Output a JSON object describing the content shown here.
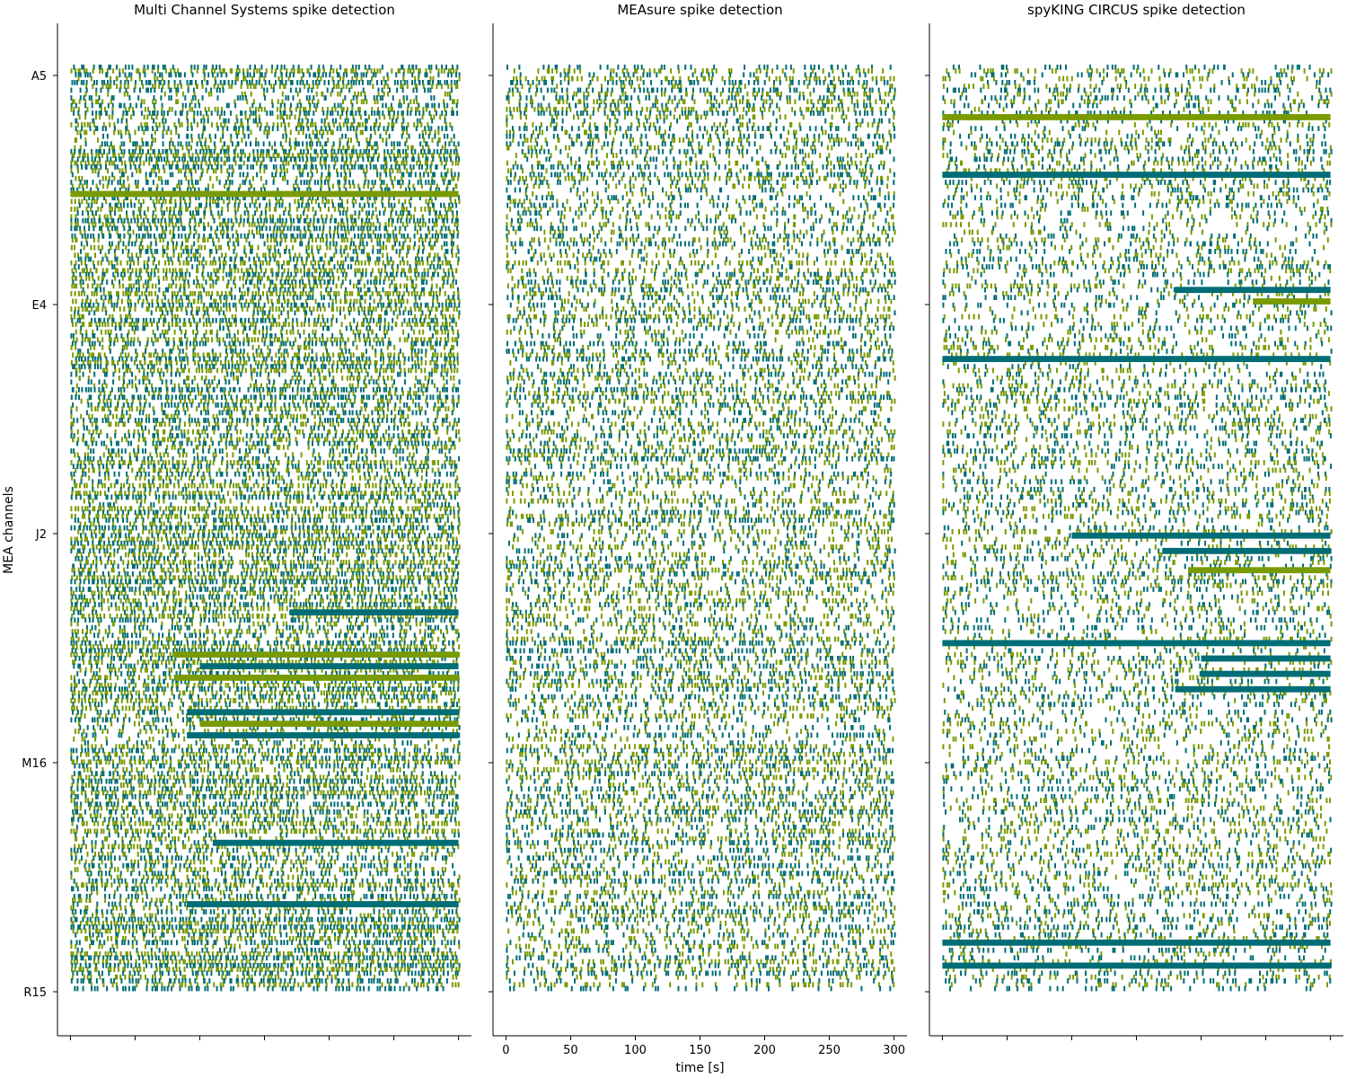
{
  "figure": {
    "ylabel": "MEA channels",
    "xlabel": "time [s]"
  },
  "colors": {
    "series_a": "#006d77",
    "series_b": "#7a9a01",
    "axis": "#000000"
  },
  "chart_data": [
    {
      "type": "scatter",
      "mark": "raster",
      "title": "Multi Channel Systems spike detection",
      "xlim": [
        -10,
        310
      ],
      "xticks": [
        0,
        50,
        100,
        150,
        200,
        250,
        300
      ],
      "xtick_labels_visible": false,
      "ytick_labels": [
        "A5",
        "E4",
        "J2",
        "M16",
        "R15"
      ],
      "ytick_labels_visible": true,
      "n_channels": 241,
      "series_colors": [
        "#006d77",
        "#7a9a01"
      ],
      "density": 0.62,
      "bands": [
        {
          "channel": 33,
          "start": 0,
          "end": 300
        },
        {
          "channel": 142,
          "start": 170,
          "end": 300
        },
        {
          "channel": 153,
          "start": 80,
          "end": 300
        },
        {
          "channel": 156,
          "start": 100,
          "end": 300
        },
        {
          "channel": 159,
          "start": 80,
          "end": 300
        },
        {
          "channel": 168,
          "start": 90,
          "end": 300
        },
        {
          "channel": 171,
          "start": 100,
          "end": 300
        },
        {
          "channel": 174,
          "start": 90,
          "end": 300
        },
        {
          "channel": 202,
          "start": 110,
          "end": 300
        },
        {
          "channel": 218,
          "start": 90,
          "end": 300
        }
      ]
    },
    {
      "type": "scatter",
      "mark": "raster",
      "title": "MEAsure spike detection",
      "xlim": [
        -10,
        310
      ],
      "xticks": [
        0,
        50,
        100,
        150,
        200,
        250,
        300
      ],
      "xtick_labels": [
        "0",
        "50",
        "100",
        "150",
        "200",
        "250",
        "300"
      ],
      "xtick_labels_visible": true,
      "xlabel": "time [s]",
      "ytick_labels": [
        "A5",
        "E4",
        "J2",
        "M16",
        "R15"
      ],
      "ytick_labels_visible": false,
      "n_channels": 241,
      "series_colors": [
        "#006d77",
        "#7a9a01"
      ],
      "density": 0.4,
      "bands": []
    },
    {
      "type": "scatter",
      "mark": "raster",
      "title": "spyKING CIRCUS spike detection",
      "xlim": [
        -10,
        310
      ],
      "xticks": [
        0,
        50,
        100,
        150,
        200,
        250,
        300
      ],
      "xtick_labels_visible": false,
      "ytick_labels": [
        "A5",
        "E4",
        "J2",
        "M16",
        "R15"
      ],
      "ytick_labels_visible": false,
      "n_channels": 241,
      "series_colors": [
        "#006d77",
        "#7a9a01"
      ],
      "density": 0.3,
      "bands": [
        {
          "channel": 13,
          "start": 0,
          "end": 300
        },
        {
          "channel": 28,
          "start": 0,
          "end": 300
        },
        {
          "channel": 58,
          "start": 180,
          "end": 300
        },
        {
          "channel": 61,
          "start": 240,
          "end": 300
        },
        {
          "channel": 76,
          "start": 0,
          "end": 300
        },
        {
          "channel": 122,
          "start": 100,
          "end": 300
        },
        {
          "channel": 126,
          "start": 170,
          "end": 300
        },
        {
          "channel": 131,
          "start": 190,
          "end": 300
        },
        {
          "channel": 150,
          "start": 0,
          "end": 300
        },
        {
          "channel": 154,
          "start": 200,
          "end": 300
        },
        {
          "channel": 158,
          "start": 200,
          "end": 300
        },
        {
          "channel": 162,
          "start": 180,
          "end": 300
        },
        {
          "channel": 228,
          "start": 0,
          "end": 300
        },
        {
          "channel": 234,
          "start": 0,
          "end": 300
        }
      ]
    }
  ]
}
